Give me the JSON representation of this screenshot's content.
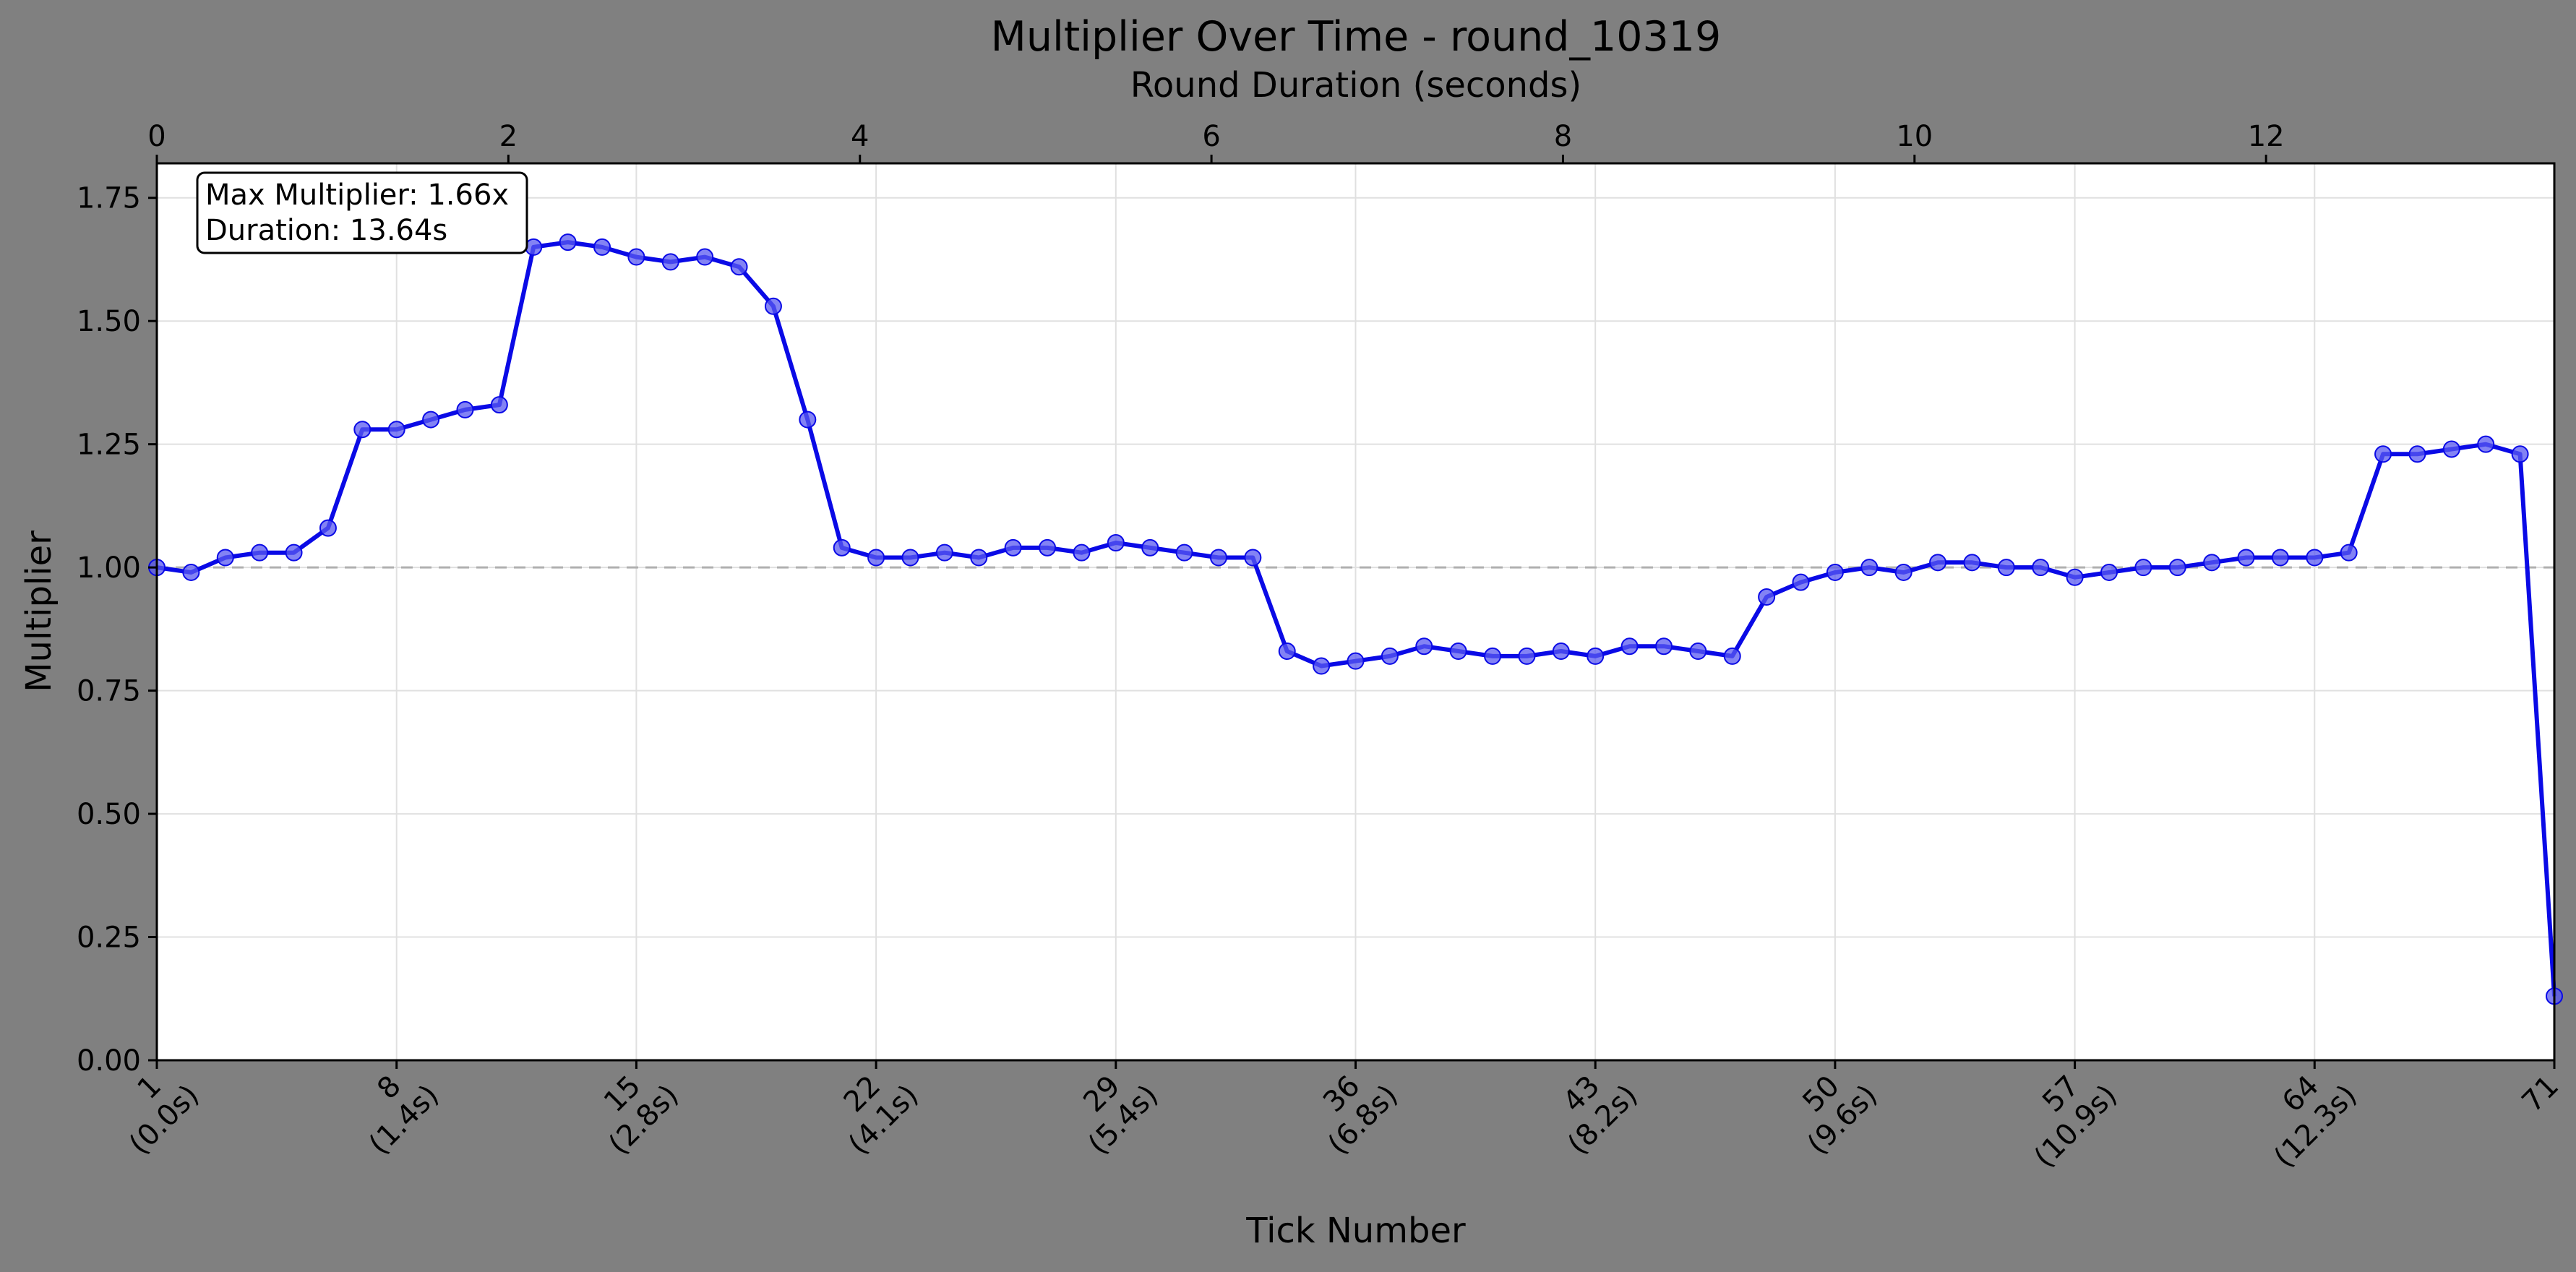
{
  "chart_data": {
    "type": "line",
    "title": "Multiplier Over Time - round_10319",
    "xlabel": "Tick Number",
    "ylabel": "Multiplier",
    "x2label": "Round Duration (seconds)",
    "xlim": [
      1,
      71
    ],
    "ylim": [
      0,
      1.82
    ],
    "x2lim": [
      0,
      13.64
    ],
    "grid": true,
    "reference_line": 1.0,
    "y_ticks": [
      "0.00",
      "0.25",
      "0.50",
      "0.75",
      "1.00",
      "1.25",
      "1.50",
      "1.75"
    ],
    "x_ticks": [
      {
        "tick": 1,
        "label1": "1",
        "label2": "(0.0s)"
      },
      {
        "tick": 8,
        "label1": "8",
        "label2": "(1.4s)"
      },
      {
        "tick": 15,
        "label1": "15",
        "label2": "(2.8s)"
      },
      {
        "tick": 22,
        "label1": "22",
        "label2": "(4.1s)"
      },
      {
        "tick": 29,
        "label1": "29",
        "label2": "(5.4s)"
      },
      {
        "tick": 36,
        "label1": "36",
        "label2": "(6.8s)"
      },
      {
        "tick": 43,
        "label1": "43",
        "label2": "(8.2s)"
      },
      {
        "tick": 50,
        "label1": "50",
        "label2": "(9.6s)"
      },
      {
        "tick": 57,
        "label1": "57",
        "label2": "(10.9s)"
      },
      {
        "tick": 64,
        "label1": "64",
        "label2": "(12.3s)"
      },
      {
        "tick": 71,
        "label1": "71",
        "label2": ""
      }
    ],
    "x2_ticks": [
      "0",
      "2",
      "4",
      "6",
      "8",
      "10",
      "12"
    ],
    "annotation": {
      "line1": "Max Multiplier: 1.66x",
      "line2": "Duration: 13.64s"
    },
    "series": [
      {
        "color": "#0a0ae6",
        "x": [
          1,
          2,
          3,
          4,
          5,
          6,
          7,
          8,
          9,
          10,
          11,
          12,
          13,
          14,
          15,
          16,
          17,
          18,
          19,
          20,
          21,
          22,
          23,
          24,
          25,
          26,
          27,
          28,
          29,
          30,
          31,
          32,
          33,
          34,
          35,
          36,
          37,
          38,
          39,
          40,
          41,
          42,
          43,
          44,
          45,
          46,
          47,
          48,
          49,
          50,
          51,
          52,
          53,
          54,
          55,
          56,
          57,
          58,
          59,
          60,
          61,
          62,
          63,
          64,
          65,
          66,
          67,
          68,
          69,
          70,
          71
        ],
        "values": [
          1.0,
          0.99,
          1.02,
          1.03,
          1.03,
          1.08,
          1.28,
          1.28,
          1.3,
          1.32,
          1.33,
          1.65,
          1.66,
          1.65,
          1.63,
          1.62,
          1.63,
          1.61,
          1.53,
          1.3,
          1.04,
          1.02,
          1.02,
          1.03,
          1.02,
          1.04,
          1.04,
          1.03,
          1.05,
          1.04,
          1.03,
          1.02,
          1.02,
          0.83,
          0.8,
          0.81,
          0.82,
          0.84,
          0.83,
          0.82,
          0.82,
          0.83,
          0.82,
          0.84,
          0.84,
          0.83,
          0.82,
          0.94,
          0.97,
          0.99,
          1.0,
          0.99,
          1.01,
          1.01,
          1.0,
          1.0,
          0.98,
          0.99,
          1.0,
          1.0,
          1.01,
          1.02,
          1.02,
          1.02,
          1.03,
          1.23,
          1.23,
          1.24,
          1.25,
          1.23,
          0.13
        ]
      }
    ]
  }
}
